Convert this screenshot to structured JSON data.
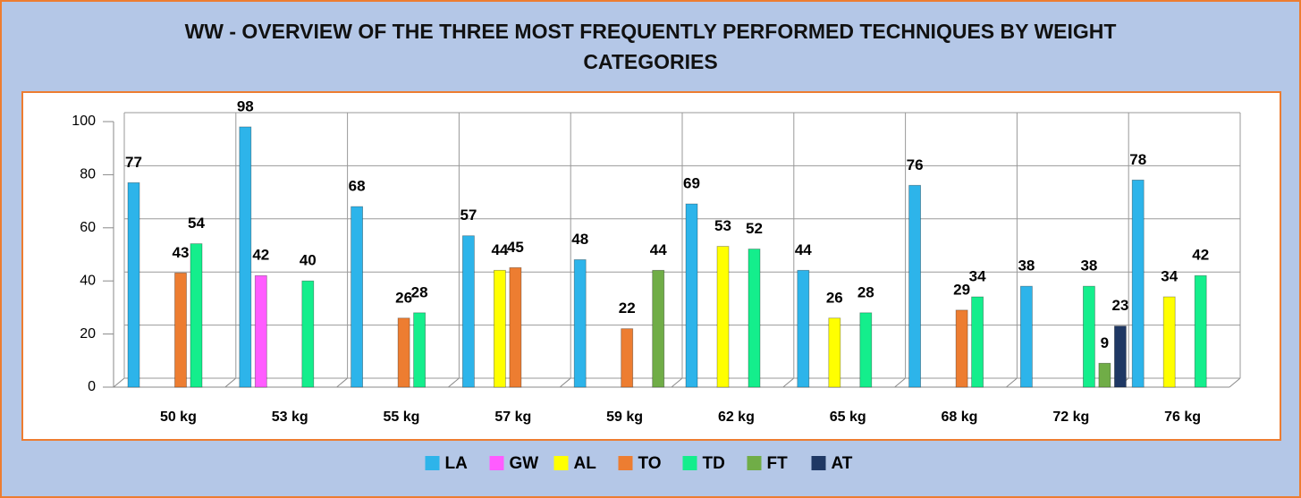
{
  "chart_data": {
    "type": "bar",
    "title": "WW - OVERVIEW OF THE THREE MOST FREQUENTLY PERFORMED TECHNIQUES BY WEIGHT CATEGORIES",
    "categories": [
      "50 kg",
      "53 kg",
      "55 kg",
      "57 kg",
      "59 kg",
      "62 kg",
      "65 kg",
      "68 kg",
      "72 kg",
      "76 kg"
    ],
    "series": [
      {
        "name": "LA",
        "color": "#2db4ea",
        "values": [
          77,
          98,
          68,
          57,
          48,
          69,
          44,
          76,
          38,
          78
        ]
      },
      {
        "name": "GW",
        "color": "#ff5cff",
        "values": [
          null,
          42,
          null,
          null,
          null,
          null,
          null,
          null,
          null,
          null
        ]
      },
      {
        "name": "AL",
        "color": "#ffff00",
        "values": [
          null,
          null,
          null,
          44,
          null,
          53,
          26,
          null,
          null,
          34
        ]
      },
      {
        "name": "TO",
        "color": "#ed7d31",
        "values": [
          43,
          null,
          26,
          45,
          22,
          null,
          null,
          29,
          null,
          null
        ]
      },
      {
        "name": "TD",
        "color": "#14ee8c",
        "values": [
          54,
          40,
          28,
          null,
          null,
          52,
          28,
          34,
          38,
          42
        ]
      },
      {
        "name": "FT",
        "color": "#70ad47",
        "values": [
          null,
          null,
          null,
          null,
          44,
          null,
          null,
          null,
          9,
          null
        ]
      },
      {
        "name": "AT",
        "color": "#1f3864",
        "values": [
          null,
          null,
          null,
          null,
          null,
          null,
          null,
          null,
          23,
          null
        ]
      }
    ],
    "ylim": [
      0,
      100
    ],
    "yticks": [
      0,
      20,
      40,
      60,
      80,
      100
    ],
    "grid": true,
    "legend": "bottom"
  }
}
